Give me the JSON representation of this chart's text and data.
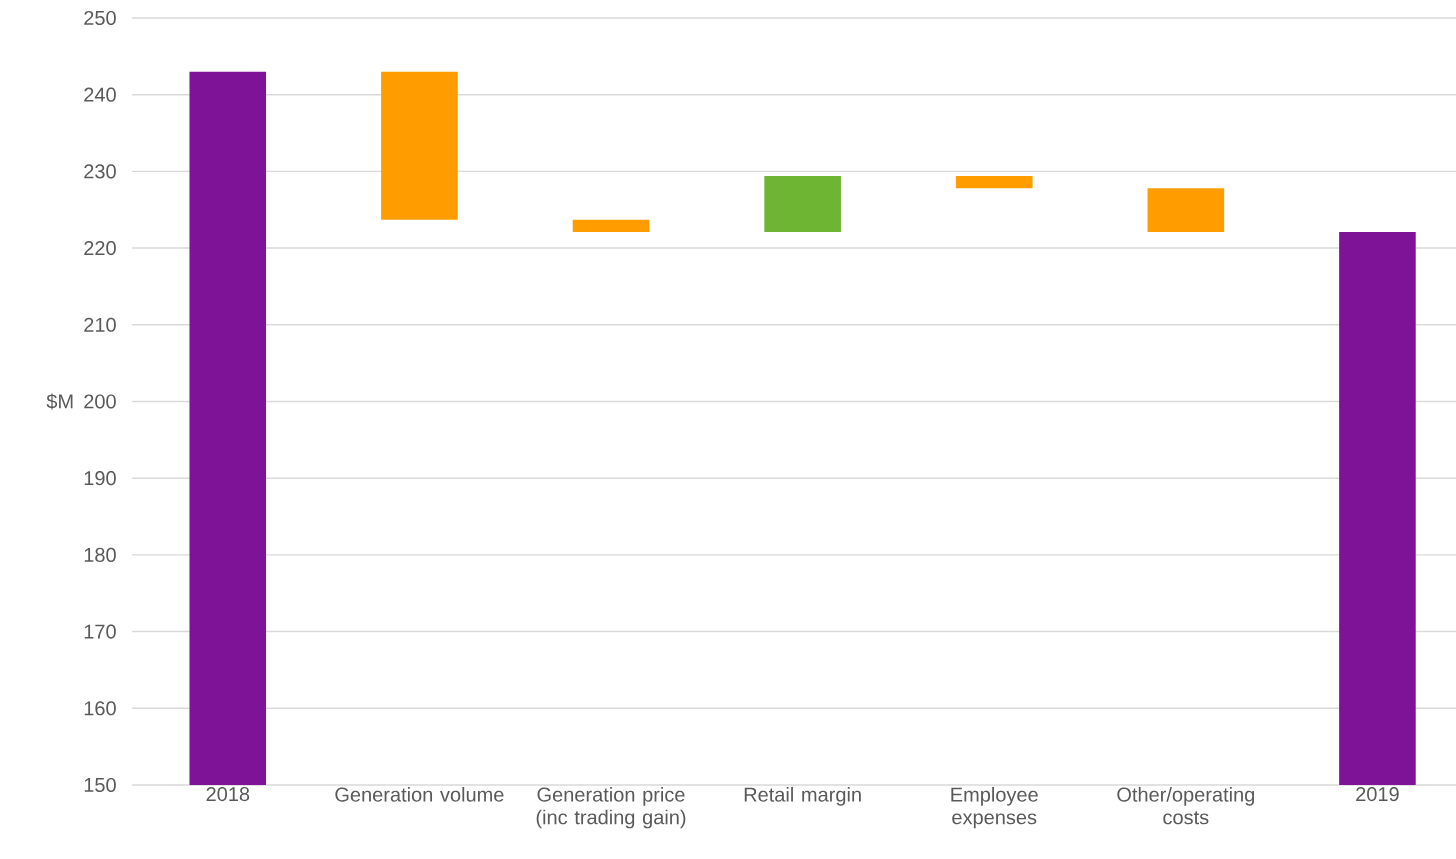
{
  "chart_data": {
    "type": "bar",
    "ylabel": "$M",
    "categories": [
      "2018",
      "Generation volume",
      "Generation price (inc trading gain)",
      "Retail margin",
      "Employee expenses",
      "Other/operating costs",
      "2019"
    ],
    "values": [
      243,
      -19.3,
      -1.6,
      7.3,
      -1.6,
      -5.7,
      222.1
    ],
    "base": [
      null,
      243,
      223.7,
      222.1,
      229.4,
      227.8,
      null
    ],
    "colors": [
      "#7f1397",
      "#ff9c00",
      "#ff9c00",
      "#6db533",
      "#ff9c00",
      "#ff9c00",
      "#7f1397"
    ],
    "ylim": [
      150,
      250
    ],
    "yticks": [
      150,
      160,
      170,
      180,
      190,
      200,
      210,
      220,
      230,
      240,
      250
    ],
    "grid": "y"
  }
}
